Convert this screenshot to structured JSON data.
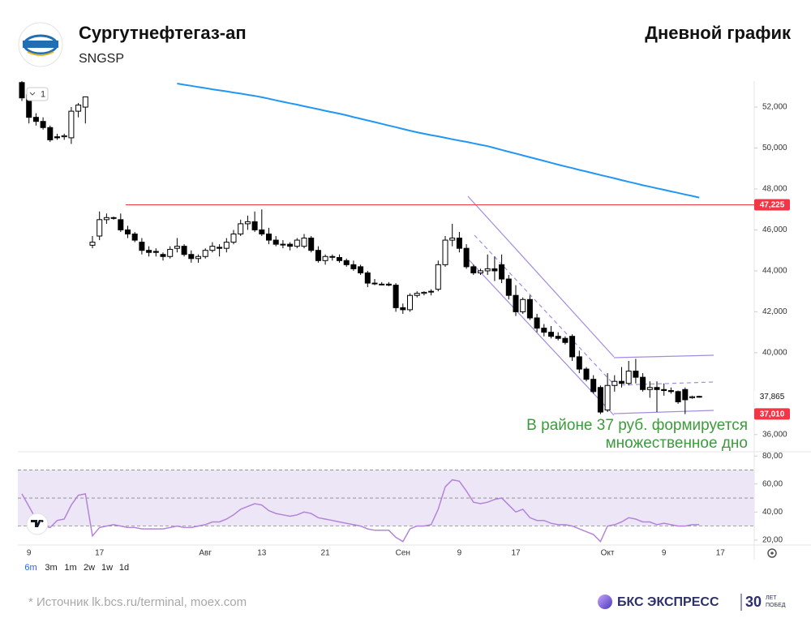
{
  "header": {
    "title": "Сургутнефтегаз-ап",
    "ticker": "SNGSP",
    "subtitle": "Дневной график"
  },
  "chart_data": {
    "type": "candlestick",
    "legend_badge": "1",
    "categories": [
      null,
      "9",
      null,
      null,
      null,
      null,
      null,
      null,
      null,
      null,
      null,
      "17",
      null,
      null,
      null,
      null,
      null,
      null,
      null,
      null,
      null,
      null,
      null,
      null,
      null,
      null,
      "Авг",
      null,
      null,
      null,
      null,
      null,
      null,
      null,
      "13",
      null,
      null,
      null,
      null,
      null,
      null,
      null,
      null,
      "21",
      null,
      null,
      null,
      null,
      null,
      null,
      null,
      null,
      null,
      null,
      "Сен",
      null,
      null,
      null,
      null,
      null,
      null,
      null,
      "9",
      null,
      null,
      null,
      null,
      null,
      null,
      null,
      "17",
      null,
      null,
      null,
      null,
      null,
      null,
      null,
      null,
      null,
      null,
      null,
      null,
      "Окт",
      null,
      null,
      null,
      null,
      null,
      null,
      null,
      "9",
      null,
      null,
      null,
      null,
      null,
      null,
      null,
      "17"
    ],
    "open": [
      53200,
      52600,
      51500,
      51300,
      51000,
      50550,
      50550,
      50500,
      51800,
      52000,
      45250,
      45700,
      46500,
      46600,
      46500,
      46000,
      45800,
      45400,
      45000,
      44950,
      44800,
      44700,
      45100,
      45200,
      44800,
      44600,
      44700,
      45000,
      45150,
      45100,
      45400,
      45800,
      46300,
      46400,
      46000,
      45800,
      45500,
      45300,
      45300,
      45200,
      45200,
      45600,
      45000,
      44500,
      44700,
      44650,
      44500,
      44300,
      44200,
      43900,
      43400,
      43350,
      43350,
      43300,
      42200,
      42100,
      42800,
      42900,
      43000,
      43100,
      44300,
      45500,
      45600,
      45100,
      44200,
      43900,
      44000,
      44100,
      44300,
      43600,
      42800,
      42000,
      42600,
      41700,
      41200,
      41000,
      40800,
      40700,
      40800,
      39800,
      39200,
      38700,
      38300,
      37200,
      38400,
      38600,
      38500,
      39100,
      38800,
      38200,
      38300,
      38200,
      38150,
      38100,
      38200,
      37800,
      37850,
      null,
      null,
      null
    ],
    "high": [
      53300,
      52700,
      51700,
      51500,
      51100,
      50700,
      50700,
      52000,
      52200,
      52500,
      45700,
      46900,
      46800,
      46650,
      46800,
      46200,
      45900,
      45600,
      45200,
      45100,
      44900,
      45200,
      45600,
      45300,
      45000,
      44800,
      45100,
      45400,
      45300,
      45600,
      46000,
      46500,
      46700,
      46900,
      47000,
      46100,
      45700,
      45500,
      45400,
      45600,
      45800,
      45700,
      45200,
      44800,
      44800,
      44800,
      44600,
      44500,
      44300,
      44000,
      43600,
      43450,
      43450,
      43400,
      42400,
      42900,
      43000,
      43000,
      43100,
      44500,
      45700,
      46300,
      45900,
      45300,
      44300,
      44100,
      44800,
      44700,
      44800,
      43800,
      43300,
      42700,
      42800,
      41900,
      41400,
      41300,
      41000,
      40800,
      40900,
      40100,
      39300,
      38900,
      38400,
      39000,
      38900,
      39300,
      39600,
      39700,
      39000,
      38600,
      38600,
      38500,
      38300,
      38150,
      38300,
      37900,
      37900,
      null,
      null,
      null
    ],
    "low": [
      52300,
      51200,
      51100,
      50900,
      50300,
      50400,
      50400,
      50200,
      51500,
      51200,
      45100,
      45500,
      46300,
      46500,
      45900,
      45600,
      45400,
      44800,
      44700,
      44700,
      44500,
      44600,
      44900,
      44700,
      44400,
      44400,
      44600,
      44900,
      44700,
      44900,
      45300,
      45700,
      46000,
      45900,
      45700,
      45300,
      45200,
      45100,
      45000,
      45100,
      45100,
      44900,
      44400,
      44300,
      44500,
      44400,
      44200,
      44000,
      43800,
      43200,
      43300,
      43300,
      43250,
      42000,
      41900,
      42000,
      42700,
      42800,
      42800,
      43000,
      44200,
      45200,
      44900,
      44100,
      43800,
      43800,
      43800,
      43500,
      43400,
      42600,
      41800,
      41900,
      41600,
      41000,
      40800,
      40700,
      40600,
      40400,
      39600,
      39000,
      38600,
      38000,
      37000,
      37100,
      38100,
      38300,
      38400,
      38500,
      38100,
      37800,
      37100,
      37900,
      38000,
      37500,
      37000,
      37750,
      37800,
      null,
      null,
      null
    ],
    "close": [
      52450,
      51500,
      51300,
      51000,
      50400,
      50500,
      50600,
      51800,
      52100,
      52500,
      45400,
      46500,
      46600,
      46600,
      46000,
      45800,
      45500,
      45000,
      44900,
      44900,
      44700,
      45050,
      45200,
      44800,
      44600,
      44700,
      45000,
      45200,
      45100,
      45400,
      45800,
      46300,
      46400,
      46000,
      45800,
      45500,
      45300,
      45300,
      45200,
      45500,
      45600,
      45000,
      44500,
      44700,
      44700,
      44500,
      44300,
      44100,
      43900,
      43400,
      43400,
      43350,
      43300,
      42200,
      42100,
      42800,
      42900,
      42950,
      43000,
      44300,
      45500,
      45600,
      45100,
      44200,
      43900,
      44000,
      44100,
      44000,
      43600,
      42800,
      42000,
      42600,
      41700,
      41200,
      41000,
      40800,
      40700,
      40500,
      39800,
      39200,
      38700,
      38100,
      37100,
      38400,
      38600,
      38500,
      39100,
      38800,
      38200,
      38300,
      38200,
      38150,
      38100,
      37600,
      37700,
      37850,
      37865,
      null,
      null,
      null
    ],
    "up_color": "#ffffff",
    "down_color": "#000000",
    "ma": {
      "color": "#2196f3",
      "values": [
        null,
        null,
        null,
        null,
        null,
        null,
        null,
        null,
        null,
        null,
        null,
        null,
        null,
        null,
        null,
        null,
        null,
        null,
        null,
        null,
        null,
        null,
        53150,
        53090,
        53040,
        52980,
        52930,
        52870,
        52820,
        52770,
        52710,
        52660,
        52600,
        52550,
        52480,
        52410,
        52330,
        52260,
        52190,
        52120,
        52040,
        51970,
        51900,
        51820,
        51750,
        51680,
        51600,
        51510,
        51430,
        51350,
        51270,
        51180,
        51100,
        51020,
        50930,
        50850,
        50770,
        50700,
        50630,
        50570,
        50500,
        50430,
        50360,
        50300,
        50230,
        50160,
        50090,
        50000,
        49910,
        49820,
        49730,
        49640,
        49550,
        49460,
        49370,
        49280,
        49190,
        49100,
        49020,
        48930,
        48850,
        48770,
        48680,
        48600,
        48520,
        48430,
        48350,
        48270,
        48180,
        48110,
        48030,
        47960,
        47880,
        47810,
        47730,
        47660,
        47580,
        null,
        null,
        null
      ]
    },
    "ylim": [
      35160,
      53270
    ],
    "yticks": [
      {
        "value": 36000,
        "label": "36,000"
      },
      {
        "value": 40000,
        "label": "40,000"
      },
      {
        "value": 42000,
        "label": "42,000"
      },
      {
        "value": 44000,
        "label": "44,000"
      },
      {
        "value": 46000,
        "label": "46,000"
      },
      {
        "value": 48000,
        "label": "48,000"
      },
      {
        "value": 50000,
        "label": "50,000"
      },
      {
        "value": 52000,
        "label": "52,000"
      }
    ],
    "grid": false,
    "levels": [
      {
        "value": 47225,
        "label": "47,225",
        "color": "#f23645",
        "show_line": true
      },
      {
        "value": 37010,
        "label": "37,010",
        "color": "#f23645",
        "show_line": false
      }
    ],
    "last_price": {
      "value": 37865,
      "label": "37,865"
    },
    "annotation": [
      "В районе 37 руб. формируется",
      "множественное дно"
    ],
    "annotation_color": "#3d9a3d",
    "rsi": {
      "color": "#b484d8",
      "ylim": [
        16.5,
        82.4
      ],
      "band": [
        30,
        70
      ],
      "midline": 50,
      "yticks": [
        {
          "value": 20,
          "label": "20,00"
        },
        {
          "value": 40,
          "label": "40,00"
        },
        {
          "value": 60,
          "label": "60,00"
        },
        {
          "value": 80,
          "label": "80,00"
        }
      ],
      "values": [
        53,
        44,
        35,
        30,
        29,
        34,
        35,
        45,
        52,
        53,
        23,
        29,
        30,
        31,
        30,
        29,
        29,
        28,
        28,
        28,
        28,
        29,
        30,
        29,
        29,
        30,
        31,
        33,
        33,
        35,
        38,
        42,
        44,
        46,
        45,
        41,
        39,
        38,
        37,
        38,
        40,
        39,
        36,
        35,
        34,
        33,
        32,
        31,
        30,
        28,
        27,
        27,
        27,
        22,
        19,
        28,
        30,
        30,
        31,
        42,
        58,
        63,
        62,
        55,
        47,
        46,
        47,
        49,
        50,
        45,
        40,
        42,
        36,
        34,
        34,
        32,
        31,
        31,
        30,
        28,
        26,
        24,
        19,
        30,
        31,
        33,
        36,
        35,
        33,
        33,
        31,
        32,
        31,
        30,
        30,
        31,
        31,
        null,
        null,
        null
      ]
    }
  },
  "timeframes": [
    "6m",
    "3m",
    "1m",
    "2w",
    "1w",
    "1d"
  ],
  "footer": {
    "source": "*  Источник lk.bcs.ru/terminal, moex.com",
    "brand": "БКС ЭКСПРЕСС",
    "years": "30",
    "years_caption": [
      "ЛЕТ",
      "ПОБЕД"
    ]
  }
}
